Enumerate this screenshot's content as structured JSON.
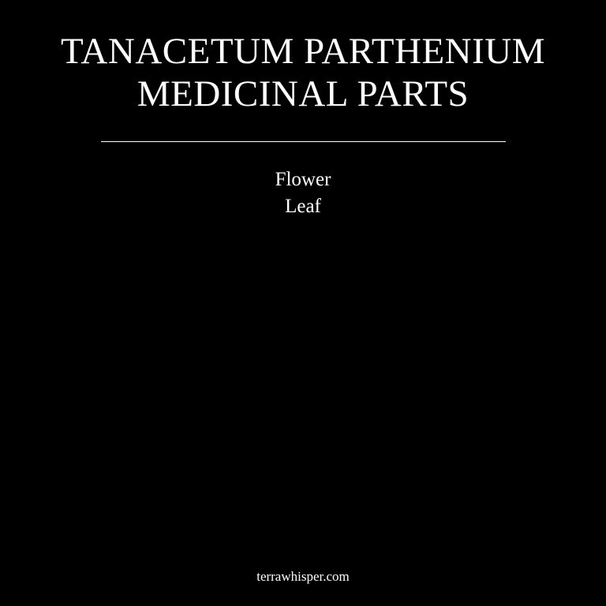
{
  "colors": {
    "background": "#000000",
    "text": "#ffffff",
    "divider": "#ffffff"
  },
  "title": {
    "line1": "TANACETUM PARTHENIUM",
    "line2": "MEDICINAL PARTS"
  },
  "parts": [
    "Flower",
    "Leaf"
  ],
  "footer": {
    "site": "terrawhisper.com"
  }
}
